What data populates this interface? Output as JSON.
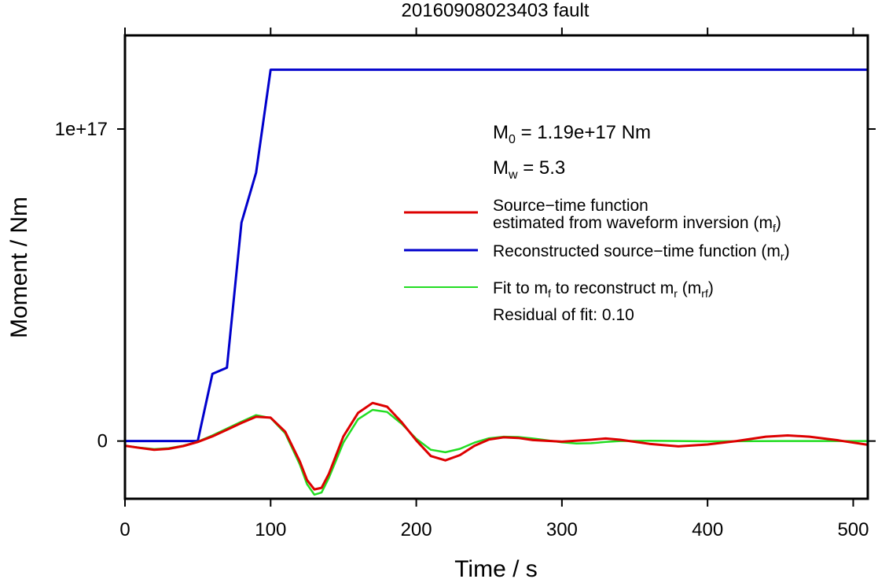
{
  "chart_data": {
    "type": "line",
    "title": "20160908023403 fault",
    "xlabel": "Time / s",
    "ylabel": "Moment / Nm",
    "xlim": [
      0,
      510
    ],
    "ylim": [
      -1.85e+16,
      1.3e+17
    ],
    "x_ticks": [
      0,
      100,
      200,
      300,
      400,
      500
    ],
    "x_tick_labels": [
      "0",
      "100",
      "200",
      "300",
      "400",
      "500"
    ],
    "y_ticks": [
      0,
      1e+17
    ],
    "y_tick_labels": [
      "0",
      "1e+17"
    ],
    "grid": false,
    "legend_position": "right",
    "annotations": {
      "m0": {
        "main": "M",
        "sub": "0",
        "rest": " = 1.19e+17 Nm"
      },
      "mw": {
        "main": "M",
        "sub": "w",
        "rest": " = 5.3"
      },
      "residual": "Residual of fit: 0.10"
    },
    "legend": {
      "red": {
        "line1": "Source−time function",
        "line2_pre": "estimated from waveform inversion (m",
        "line2_sub": "f",
        "line2_post": ")"
      },
      "blue": {
        "pre": "Reconstructed source−time function (m",
        "sub": "r",
        "post": ")"
      },
      "green": {
        "a": "Fit to m",
        "a_sub": "f",
        "b": " to reconstruct m",
        "b_sub": "r",
        "c": " (m",
        "c_sub": "rf",
        "d": ")"
      }
    },
    "series": [
      {
        "color": "#0000cc",
        "points": [
          [
            0,
            0
          ],
          [
            50,
            0
          ],
          [
            60,
            2.15e+16
          ],
          [
            70,
            2.35e+16
          ],
          [
            80,
            7e+16
          ],
          [
            90,
            8.6e+16
          ],
          [
            100,
            1.19e+17
          ],
          [
            510,
            1.19e+17
          ]
        ]
      },
      {
        "color": "#dd0000",
        "points": [
          [
            0,
            -1500000000000000.0
          ],
          [
            10,
            -2200000000000000.0
          ],
          [
            20,
            -2800000000000000.0
          ],
          [
            30,
            -2500000000000000.0
          ],
          [
            40,
            -1600000000000000.0
          ],
          [
            50,
            -300000000000000.0
          ],
          [
            60,
            1500000000000000.0
          ],
          [
            70,
            3600000000000000.0
          ],
          [
            80,
            5800000000000000.0
          ],
          [
            90,
            7800000000000000.0
          ],
          [
            100,
            7500000000000000.0
          ],
          [
            110,
            3000000000000000.0
          ],
          [
            120,
            -6500000000000000.0
          ],
          [
            125,
            -1.25e+16
          ],
          [
            130,
            -1.55e+16
          ],
          [
            135,
            -1.5e+16
          ],
          [
            140,
            -1.05e+16
          ],
          [
            150,
            1500000000000000.0
          ],
          [
            160,
            9000000000000000.0
          ],
          [
            170,
            1.22e+16
          ],
          [
            180,
            1.1e+16
          ],
          [
            190,
            6000000000000000.0
          ],
          [
            200,
            200000000000000.0
          ],
          [
            210,
            -4800000000000000.0
          ],
          [
            220,
            -6200000000000000.0
          ],
          [
            230,
            -4500000000000000.0
          ],
          [
            240,
            -1500000000000000.0
          ],
          [
            250,
            500000000000000.0
          ],
          [
            260,
            1200000000000000.0
          ],
          [
            270,
            1000000000000000.0
          ],
          [
            280,
            300000000000000.0
          ],
          [
            300,
            -200000000000000.0
          ],
          [
            320,
            400000000000000.0
          ],
          [
            330,
            800000000000000.0
          ],
          [
            340,
            400000000000000.0
          ],
          [
            360,
            -900000000000000.0
          ],
          [
            380,
            -1700000000000000.0
          ],
          [
            400,
            -1100000000000000.0
          ],
          [
            420,
            0
          ],
          [
            440,
            1400000000000000.0
          ],
          [
            455,
            1800000000000000.0
          ],
          [
            470,
            1400000000000000.0
          ],
          [
            490,
            200000000000000.0
          ],
          [
            510,
            -1200000000000000.0
          ]
        ]
      },
      {
        "color": "#22dd22",
        "points": [
          [
            0,
            -1500000000000000.0
          ],
          [
            10,
            -2100000000000000.0
          ],
          [
            20,
            -2600000000000000.0
          ],
          [
            30,
            -2300000000000000.0
          ],
          [
            40,
            -1500000000000000.0
          ],
          [
            50,
            -200000000000000.0
          ],
          [
            60,
            1800000000000000.0
          ],
          [
            70,
            4000000000000000.0
          ],
          [
            80,
            6200000000000000.0
          ],
          [
            90,
            8300000000000000.0
          ],
          [
            100,
            7400000000000000.0
          ],
          [
            110,
            2500000000000000.0
          ],
          [
            120,
            -7500000000000000.0
          ],
          [
            125,
            -1.38e+16
          ],
          [
            130,
            -1.72e+16
          ],
          [
            135,
            -1.65e+16
          ],
          [
            140,
            -1.18e+16
          ],
          [
            150,
            -500000000000000.0
          ],
          [
            160,
            7000000000000000.0
          ],
          [
            170,
            1e+16
          ],
          [
            180,
            9300000000000000.0
          ],
          [
            190,
            5500000000000000.0
          ],
          [
            200,
            700000000000000.0
          ],
          [
            210,
            -2800000000000000.0
          ],
          [
            220,
            -3600000000000000.0
          ],
          [
            230,
            -2500000000000000.0
          ],
          [
            240,
            -500000000000000.0
          ],
          [
            250,
            900000000000000.0
          ],
          [
            260,
            1400000000000000.0
          ],
          [
            270,
            1300000000000000.0
          ],
          [
            280,
            800000000000000.0
          ],
          [
            290,
            200000000000000.0
          ],
          [
            300,
            -400000000000000.0
          ],
          [
            310,
            -800000000000000.0
          ],
          [
            320,
            -700000000000000.0
          ],
          [
            330,
            -300000000000000.0
          ],
          [
            340,
            0
          ],
          [
            360,
            100000000000000.0
          ],
          [
            400,
            -100000000000000.0
          ],
          [
            450,
            0
          ],
          [
            510,
            0
          ]
        ]
      }
    ]
  }
}
